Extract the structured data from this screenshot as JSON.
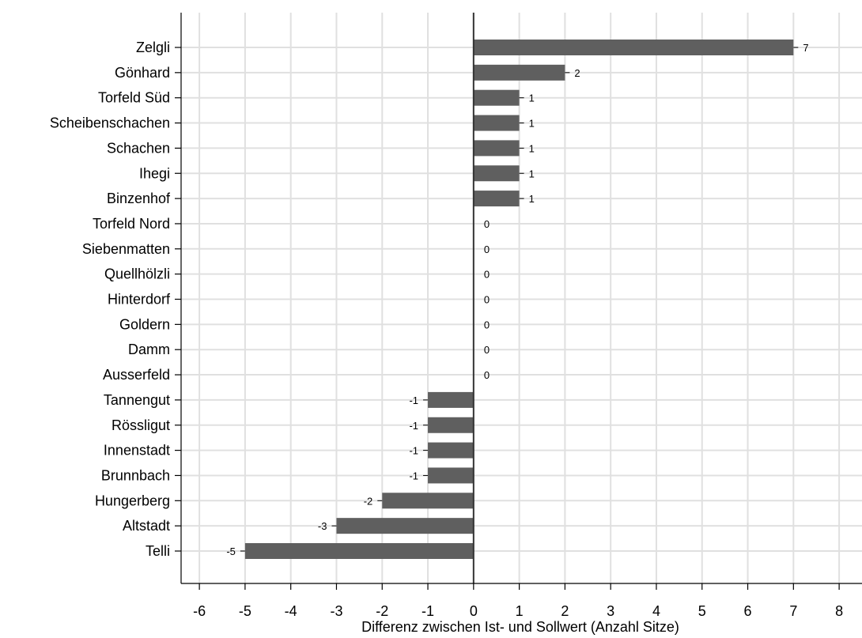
{
  "chart_data": {
    "type": "bar",
    "orientation": "horizontal",
    "categories": [
      "Zelgli",
      "Gönhard",
      "Torfeld Süd",
      "Scheibenschachen",
      "Schachen",
      "Ihegi",
      "Binzenhof",
      "Torfeld Nord",
      "Siebenmatten",
      "Quellhölzli",
      "Hinterdorf",
      "Goldern",
      "Damm",
      "Ausserfeld",
      "Tannengut",
      "Rössligut",
      "Innenstadt",
      "Brunnbach",
      "Hungerberg",
      "Altstadt",
      "Telli"
    ],
    "values": [
      7,
      2,
      1,
      1,
      1,
      1,
      1,
      0,
      0,
      0,
      0,
      0,
      0,
      0,
      -1,
      -1,
      -1,
      -1,
      -2,
      -3,
      -5
    ],
    "data_labels": [
      "7",
      "2",
      "1",
      "1",
      "1",
      "1",
      "1",
      "0",
      "0",
      "0",
      "0",
      "0",
      "0",
      "0",
      "-1",
      "-1",
      "-1",
      "-1",
      "-2",
      "-3",
      "-5"
    ],
    "xlabel": "Differenz zwischen Ist- und Sollwert (Anzahl Sitze)",
    "ylabel": "",
    "xlim": [
      -6.4,
      8.5
    ],
    "xticks": [
      -6,
      -5,
      -4,
      -3,
      -2,
      -1,
      0,
      1,
      2,
      3,
      4,
      5,
      6,
      7,
      8
    ],
    "xtick_labels": [
      "-6",
      "-5",
      "-4",
      "-3",
      "-2",
      "-1",
      "0",
      "1",
      "2",
      "3",
      "4",
      "5",
      "6",
      "7",
      "8"
    ],
    "grid": true,
    "bar_color": "#5f5f5f",
    "grid_color": "#e0e0e0",
    "zero_line_color": "#333333"
  }
}
